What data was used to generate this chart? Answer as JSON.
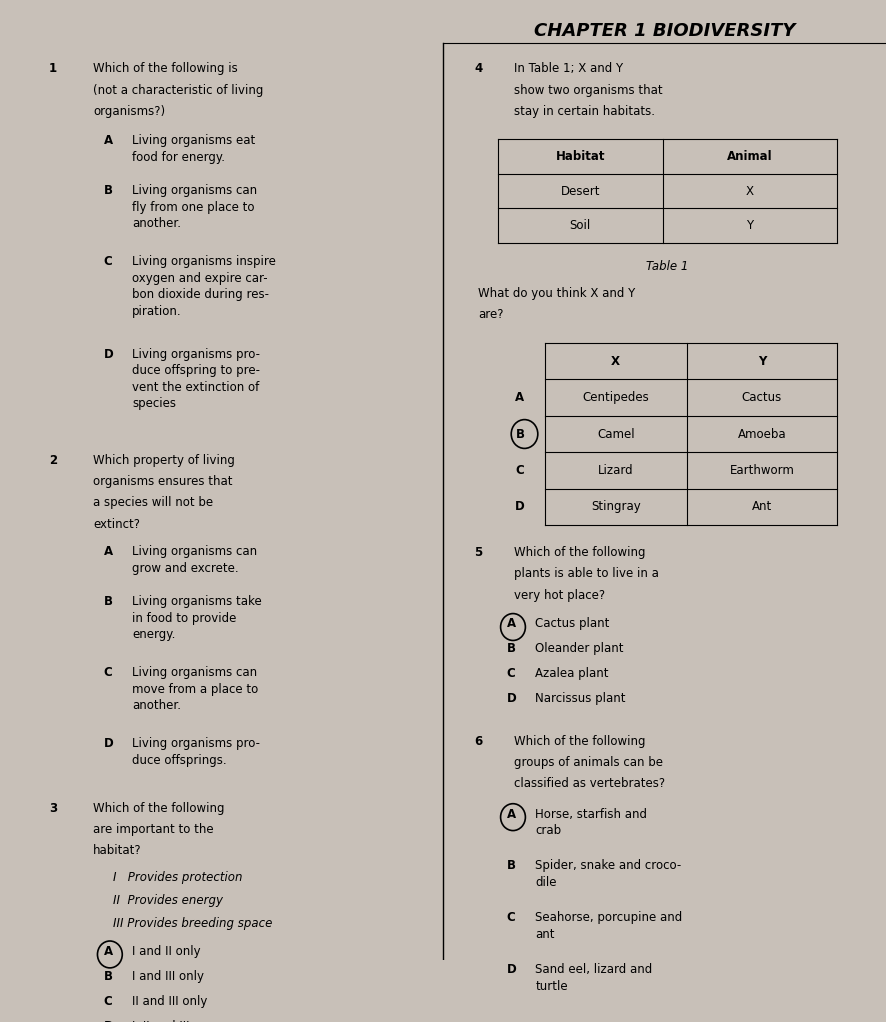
{
  "title": "CHAPTER 1 BIODIVERSITY",
  "bg_color": "#c8c0b8",
  "q1_text_lines": [
    "Which of the following is",
    "(not a characteristic of living",
    "organisms?)"
  ],
  "q1_options": [
    [
      "A",
      "Living organisms eat\nfood for energy."
    ],
    [
      "B",
      "Living organisms can\nfly from one place to\nanother."
    ],
    [
      "C",
      "Living organisms inspire\noxygen and expire car-\nbon dioxide during res-\npiration."
    ],
    [
      "D",
      "Living organisms pro-\nduce offspring to pre-\nvent the extinction of\nspecies"
    ]
  ],
  "q2_text_lines": [
    "Which property of living",
    "organisms ensures that",
    "a species will not be",
    "extinct?"
  ],
  "q2_options": [
    [
      "A",
      "Living organisms can\ngrow and excrete."
    ],
    [
      "B",
      "Living organisms take\nin food to provide\nenergy."
    ],
    [
      "C",
      "Living organisms can\nmove from a place to\nanother."
    ],
    [
      "D",
      "Living organisms pro-\nduce offsprings."
    ]
  ],
  "q3_text_lines": [
    "Which of the following",
    "are important to the",
    "habitat?"
  ],
  "q3_items": [
    "I   Provides protection",
    "II  Provides energy",
    "III Provides breeding space"
  ],
  "q3_options": [
    [
      "A",
      "I and II only"
    ],
    [
      "B",
      "I and III only"
    ],
    [
      "C",
      "II and III only"
    ],
    [
      "D",
      "I, II and III"
    ]
  ],
  "q3_circled": "A",
  "q4_text_lines": [
    "In Table 1; X and Y",
    "show two organisms that",
    "stay in certain habitats."
  ],
  "table1_rows": [
    [
      "Habitat",
      "Animal"
    ],
    [
      "Desert",
      "X"
    ],
    [
      "Soil",
      "Y"
    ]
  ],
  "table1_caption": "Table 1",
  "q4_followup": [
    "What do you think X and Y",
    "are?"
  ],
  "table2_rows": [
    [
      "X",
      "Y"
    ],
    [
      "Centipedes",
      "Cactus"
    ],
    [
      "Camel",
      "Amoeba"
    ],
    [
      "Lizard",
      "Earthworm"
    ],
    [
      "Stingray",
      "Ant"
    ]
  ],
  "table2_labels": [
    "A",
    "B",
    "C",
    "D"
  ],
  "q4_circled": "B",
  "q5_text_lines": [
    "Which of the following",
    "plants is able to live in a",
    "very hot place?"
  ],
  "q5_options": [
    [
      "A",
      "Cactus plant"
    ],
    [
      "B",
      "Oleander plant"
    ],
    [
      "C",
      "Azalea plant"
    ],
    [
      "D",
      "Narcissus plant"
    ]
  ],
  "q5_circled": "A",
  "q6_text_lines": [
    "Which of the following",
    "groups of animals can be",
    "classified as vertebrates?"
  ],
  "q6_options": [
    [
      "A",
      "Horse, starfish and\ncrab"
    ],
    [
      "B",
      "Spider, snake and croco-\ndile"
    ],
    [
      "C",
      "Seahorse, porcupine and\nant"
    ],
    [
      "D",
      "Sand eel, lizard and\nturtle"
    ]
  ],
  "q6_circled": "A"
}
